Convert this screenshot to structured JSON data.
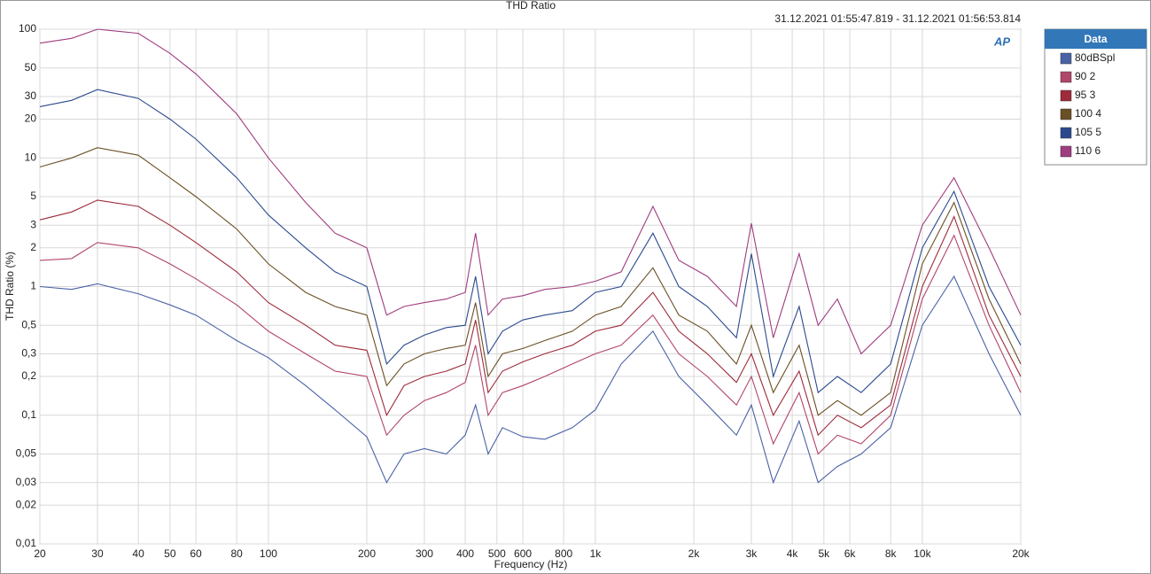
{
  "chart_data": {
    "type": "line",
    "title": "THD Ratio",
    "subtitle": "31.12.2021 01:55:47.819 - 31.12.2021 01:56:53.814",
    "logo": "AP",
    "x_label": "Frequency (Hz)",
    "y_label": "THD Ratio (%)",
    "x_log": true,
    "y_log": true,
    "grid": true,
    "legend_title": "Data",
    "legend_position": "right",
    "xlim": [
      20,
      20000
    ],
    "ylim": [
      0.01,
      100
    ],
    "xticks": [
      20,
      30,
      40,
      50,
      60,
      80,
      100,
      200,
      300,
      400,
      500,
      600,
      800,
      {
        "value": 1000,
        "label": "1k"
      },
      {
        "value": 2000,
        "label": "2k"
      },
      {
        "value": 3000,
        "label": "3k"
      },
      {
        "value": 4000,
        "label": "4k"
      },
      {
        "value": 5000,
        "label": "5k"
      },
      {
        "value": 6000,
        "label": "6k"
      },
      {
        "value": 8000,
        "label": "8k"
      },
      {
        "value": 10000,
        "label": "10k"
      },
      {
        "value": 20000,
        "label": "20k"
      }
    ],
    "yticks": [
      100,
      50,
      30,
      20,
      10,
      5,
      3,
      2,
      1,
      {
        "value": 0.5,
        "label": "0,5"
      },
      {
        "value": 0.3,
        "label": "0,3"
      },
      {
        "value": 0.2,
        "label": "0,2"
      },
      {
        "value": 0.1,
        "label": "0,1"
      },
      {
        "value": 0.05,
        "label": "0,05"
      },
      {
        "value": 0.03,
        "label": "0,03"
      },
      {
        "value": 0.02,
        "label": "0,02"
      },
      {
        "value": 0.01,
        "label": "0,01"
      }
    ],
    "x": [
      20,
      25,
      30,
      40,
      50,
      60,
      80,
      100,
      130,
      160,
      200,
      230,
      260,
      300,
      350,
      400,
      430,
      470,
      520,
      600,
      700,
      850,
      1000,
      1200,
      1500,
      1800,
      2200,
      2700,
      3000,
      3500,
      4200,
      4800,
      5500,
      6500,
      8000,
      10000,
      12500,
      16000,
      20000
    ],
    "series": [
      {
        "name": "80dBSpl",
        "color": "#4a62a6",
        "values": [
          1.0,
          0.95,
          1.05,
          0.88,
          0.72,
          0.6,
          0.38,
          0.28,
          0.17,
          0.11,
          0.068,
          0.03,
          0.05,
          0.055,
          0.05,
          0.07,
          0.12,
          0.05,
          0.08,
          0.068,
          0.065,
          0.08,
          0.11,
          0.25,
          0.45,
          0.2,
          0.12,
          0.07,
          0.12,
          0.03,
          0.09,
          0.03,
          0.04,
          0.05,
          0.08,
          0.5,
          1.2,
          0.3,
          0.1
        ]
      },
      {
        "name": "90 2",
        "color": "#b2456a",
        "values": [
          1.6,
          1.65,
          2.2,
          2.0,
          1.5,
          1.15,
          0.72,
          0.45,
          0.3,
          0.22,
          0.2,
          0.07,
          0.1,
          0.13,
          0.15,
          0.18,
          0.35,
          0.1,
          0.15,
          0.17,
          0.2,
          0.25,
          0.3,
          0.35,
          0.6,
          0.3,
          0.2,
          0.12,
          0.2,
          0.06,
          0.15,
          0.05,
          0.07,
          0.06,
          0.1,
          0.8,
          2.5,
          0.5,
          0.15
        ]
      },
      {
        "name": "95 3",
        "color": "#9e2a3a",
        "values": [
          3.3,
          3.8,
          4.7,
          4.2,
          3.0,
          2.2,
          1.3,
          0.75,
          0.5,
          0.35,
          0.32,
          0.1,
          0.17,
          0.2,
          0.22,
          0.25,
          0.55,
          0.15,
          0.22,
          0.26,
          0.3,
          0.35,
          0.45,
          0.5,
          0.9,
          0.45,
          0.3,
          0.18,
          0.3,
          0.1,
          0.22,
          0.07,
          0.1,
          0.08,
          0.12,
          1.0,
          3.5,
          0.6,
          0.2
        ]
      },
      {
        "name": "100 4",
        "color": "#6b5025",
        "values": [
          8.5,
          10,
          12,
          10.5,
          7,
          5,
          2.8,
          1.5,
          0.9,
          0.7,
          0.6,
          0.17,
          0.25,
          0.3,
          0.33,
          0.35,
          0.75,
          0.2,
          0.3,
          0.33,
          0.38,
          0.45,
          0.6,
          0.7,
          1.4,
          0.6,
          0.45,
          0.25,
          0.5,
          0.15,
          0.35,
          0.1,
          0.13,
          0.1,
          0.15,
          1.5,
          4.5,
          0.8,
          0.25
        ]
      },
      {
        "name": "105 5",
        "color": "#2b4a8e",
        "values": [
          25,
          28,
          34,
          29,
          20,
          14,
          7,
          3.6,
          2.0,
          1.3,
          1.0,
          0.25,
          0.35,
          0.42,
          0.48,
          0.5,
          1.2,
          0.3,
          0.45,
          0.55,
          0.6,
          0.65,
          0.9,
          1.0,
          2.6,
          1.0,
          0.7,
          0.4,
          1.8,
          0.2,
          0.7,
          0.15,
          0.2,
          0.15,
          0.25,
          2.0,
          5.5,
          1.0,
          0.35
        ]
      },
      {
        "name": "110 6",
        "color": "#a03c80",
        "values": [
          78,
          85,
          100,
          93,
          65,
          45,
          22,
          10,
          4.5,
          2.6,
          2.0,
          0.6,
          0.7,
          0.75,
          0.8,
          0.9,
          2.6,
          0.6,
          0.8,
          0.85,
          0.95,
          1.0,
          1.1,
          1.3,
          4.2,
          1.6,
          1.2,
          0.7,
          3.1,
          0.4,
          1.8,
          0.5,
          0.8,
          0.3,
          0.5,
          3.0,
          7.0,
          2.0,
          0.6
        ]
      }
    ]
  }
}
